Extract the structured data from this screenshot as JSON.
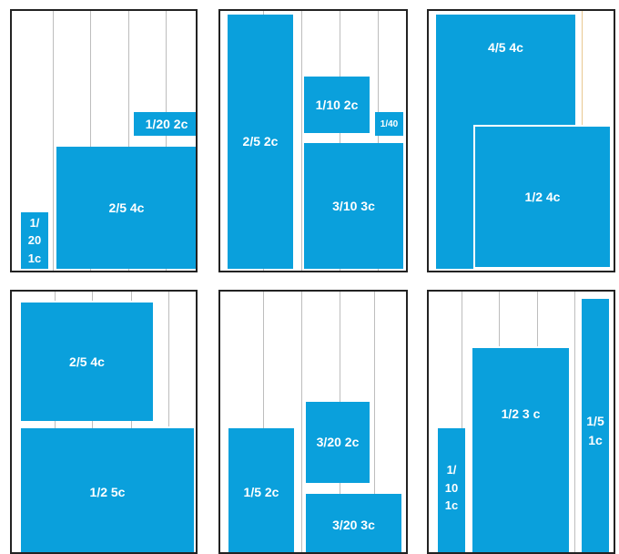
{
  "panels": [
    {
      "blocks": [
        {
          "label": "1/20 2c"
        },
        {
          "label": "2/5 4c"
        },
        {
          "label": "1/\n20\n1c"
        }
      ]
    },
    {
      "blocks": [
        {
          "label": "2/5 2c"
        },
        {
          "label": "1/10 2c"
        },
        {
          "label": "1/40"
        },
        {
          "label": "3/10 3c"
        }
      ]
    },
    {
      "blocks": [
        {
          "label": "4/5 4c"
        },
        {
          "label": "1/2 4c"
        }
      ]
    },
    {
      "blocks": [
        {
          "label": "2/5 4c"
        },
        {
          "label": "1/2 5c"
        }
      ]
    },
    {
      "blocks": [
        {
          "label": "3/20 2c"
        },
        {
          "label": "1/5 2c"
        },
        {
          "label": "3/20 3c"
        }
      ]
    },
    {
      "blocks": [
        {
          "label": "1/5\n1c"
        },
        {
          "label": "1/\n10\n1c"
        },
        {
          "label": "1/2 3 c"
        }
      ]
    }
  ],
  "colors": {
    "block": "#0aa0dc",
    "border": "#222222",
    "column_line": "#bdbdbd"
  }
}
